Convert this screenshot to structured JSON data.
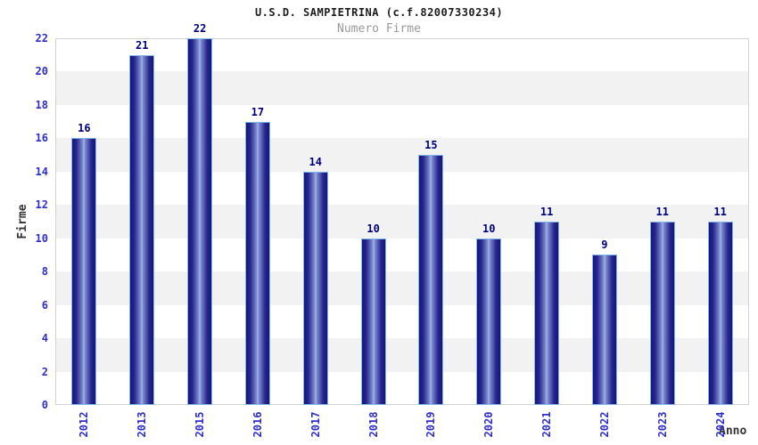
{
  "chart_data": {
    "type": "bar",
    "title": "U.S.D. SAMPIETRINA (c.f.82007330234)",
    "subtitle": "Numero Firme",
    "xlabel": "Anno",
    "ylabel": "Firme",
    "categories": [
      "2012",
      "2013",
      "2015",
      "2016",
      "2017",
      "2018",
      "2019",
      "2020",
      "2021",
      "2022",
      "2023",
      "2024"
    ],
    "values": [
      16,
      21,
      22,
      17,
      14,
      10,
      15,
      10,
      11,
      9,
      11,
      11
    ],
    "ylim": [
      0,
      22
    ],
    "ytick_step": 2,
    "grid": "horizontal-alternating-bands",
    "legend_position": "none",
    "colors": {
      "bar_dark": "#15157a",
      "bar_light": "#aab6e6",
      "bar_border": "#7fb5e8",
      "axis_tick_label": "#2e2ecc",
      "value_label": "#00007e",
      "title": "#1c1c1c",
      "subtitle": "#9a9a9a",
      "axis_name_label": "#333333",
      "band_gray": "#f2f2f2",
      "plot_border": "#d2d2d2",
      "background": "#ffffff"
    }
  }
}
